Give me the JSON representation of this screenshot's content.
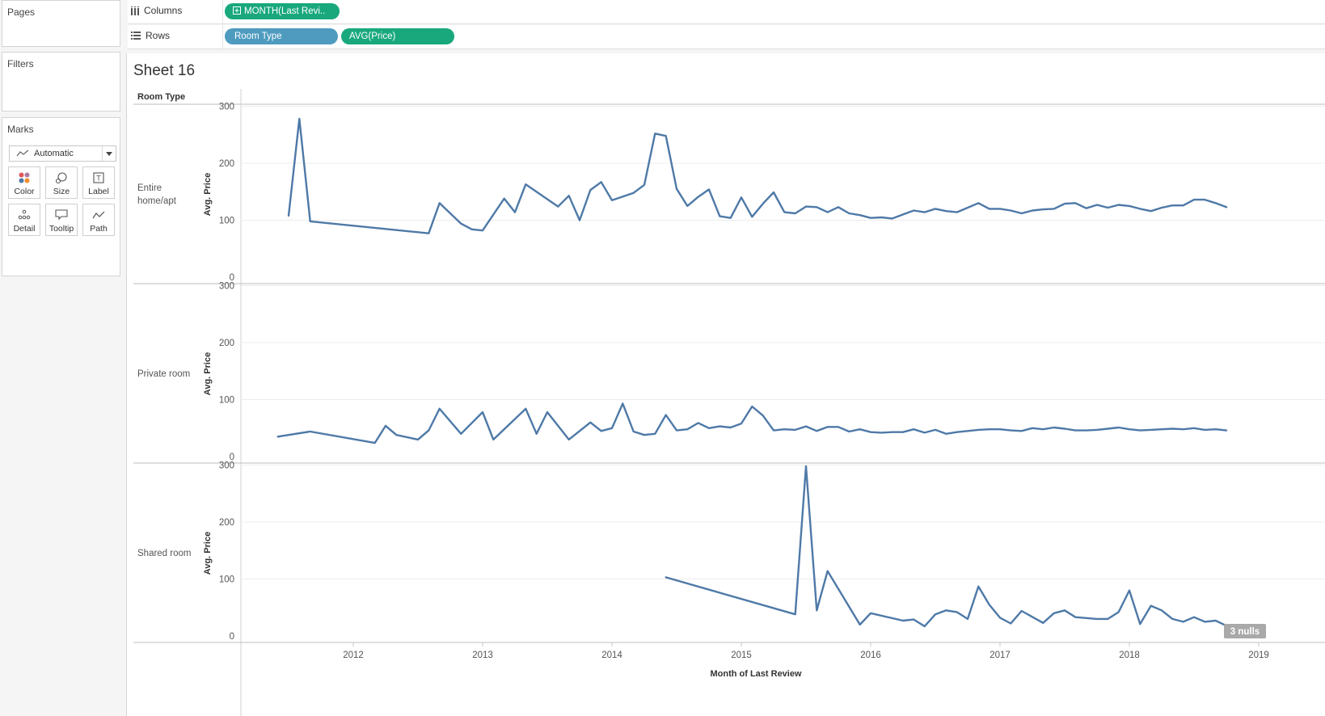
{
  "sidebar": {
    "pages_title": "Pages",
    "filters_title": "Filters",
    "marks_title": "Marks",
    "mark_type": "Automatic",
    "mark_buttons": [
      {
        "label": "Color",
        "icon": "color-dots-icon"
      },
      {
        "label": "Size",
        "icon": "size-circles-icon"
      },
      {
        "label": "Label",
        "icon": "label-text-icon"
      },
      {
        "label": "Detail",
        "icon": "detail-dots-icon"
      },
      {
        "label": "Tooltip",
        "icon": "tooltip-bubble-icon"
      },
      {
        "label": "Path",
        "icon": "path-line-icon"
      }
    ]
  },
  "shelves": {
    "columns_label": "Columns",
    "rows_label": "Rows",
    "columns_pills": [
      "MONTH(Last Revi.."
    ],
    "rows_pills": [
      "Room Type",
      "AVG(Price)"
    ]
  },
  "sheet": {
    "title": "Sheet 16",
    "row_header": "Room Type",
    "nulls_badge": "3 nulls"
  },
  "colors": {
    "line": "#4e79a7",
    "pill_green": "#19a87c",
    "pill_blue": "#4e9bbf"
  },
  "chart_data": {
    "type": "line",
    "x_axis_label": "Month of Last Review",
    "x_ticks": [
      "2012",
      "2013",
      "2014",
      "2015",
      "2016",
      "2017",
      "2018",
      "2019"
    ],
    "y_axis_label": "Avg. Price",
    "y_ticks": [
      "0",
      "100",
      "200",
      "300"
    ],
    "ylim": [
      0,
      300
    ],
    "grid": true,
    "panels": [
      {
        "name": "Entire home/apt",
        "points": [
          [
            "2011-07",
            108
          ],
          [
            "2011-08",
            278
          ],
          [
            "2011-09",
            98
          ],
          [
            "2012-08",
            77
          ],
          [
            "2012-09",
            130
          ],
          [
            "2012-11",
            94
          ],
          [
            "2012-12",
            84
          ],
          [
            "2013-01",
            82
          ],
          [
            "2013-03",
            138
          ],
          [
            "2013-04",
            114
          ],
          [
            "2013-05",
            163
          ],
          [
            "2013-08",
            124
          ],
          [
            "2013-09",
            143
          ],
          [
            "2013-10",
            100
          ],
          [
            "2013-11",
            153
          ],
          [
            "2013-12",
            167
          ],
          [
            "2014-01",
            135
          ],
          [
            "2014-03",
            148
          ],
          [
            "2014-04",
            162
          ],
          [
            "2014-05",
            252
          ],
          [
            "2014-06",
            248
          ],
          [
            "2014-07",
            155
          ],
          [
            "2014-08",
            125
          ],
          [
            "2014-09",
            141
          ],
          [
            "2014-10",
            154
          ],
          [
            "2014-11",
            107
          ],
          [
            "2014-12",
            104
          ],
          [
            "2015-01",
            140
          ],
          [
            "2015-02",
            106
          ],
          [
            "2015-03",
            129
          ],
          [
            "2015-04",
            149
          ],
          [
            "2015-05",
            114
          ],
          [
            "2015-06",
            112
          ],
          [
            "2015-07",
            124
          ],
          [
            "2015-08",
            123
          ],
          [
            "2015-09",
            114
          ],
          [
            "2015-10",
            123
          ],
          [
            "2015-11",
            112
          ],
          [
            "2015-12",
            109
          ],
          [
            "2016-01",
            104
          ],
          [
            "2016-02",
            105
          ],
          [
            "2016-03",
            103
          ],
          [
            "2016-04",
            110
          ],
          [
            "2016-05",
            117
          ],
          [
            "2016-06",
            114
          ],
          [
            "2016-07",
            120
          ],
          [
            "2016-08",
            116
          ],
          [
            "2016-09",
            114
          ],
          [
            "2016-10",
            122
          ],
          [
            "2016-11",
            130
          ],
          [
            "2016-12",
            120
          ],
          [
            "2017-01",
            120
          ],
          [
            "2017-02",
            117
          ],
          [
            "2017-03",
            112
          ],
          [
            "2017-04",
            117
          ],
          [
            "2017-05",
            119
          ],
          [
            "2017-06",
            120
          ],
          [
            "2017-07",
            129
          ],
          [
            "2017-08",
            130
          ],
          [
            "2017-09",
            121
          ],
          [
            "2017-10",
            127
          ],
          [
            "2017-11",
            122
          ],
          [
            "2017-12",
            127
          ],
          [
            "2018-01",
            125
          ],
          [
            "2018-02",
            120
          ],
          [
            "2018-03",
            116
          ],
          [
            "2018-04",
            122
          ],
          [
            "2018-05",
            126
          ],
          [
            "2018-06",
            126
          ],
          [
            "2018-07",
            136
          ],
          [
            "2018-08",
            136
          ],
          [
            "2018-09",
            130
          ],
          [
            "2018-10",
            123
          ]
        ]
      },
      {
        "name": "Private room",
        "points": [
          [
            "2011-06",
            35
          ],
          [
            "2011-09",
            44
          ],
          [
            "2012-03",
            24
          ],
          [
            "2012-04",
            54
          ],
          [
            "2012-05",
            38
          ],
          [
            "2012-07",
            30
          ],
          [
            "2012-08",
            46
          ],
          [
            "2012-09",
            84
          ],
          [
            "2012-11",
            40
          ],
          [
            "2013-01",
            78
          ],
          [
            "2013-02",
            30
          ],
          [
            "2013-05",
            84
          ],
          [
            "2013-06",
            40
          ],
          [
            "2013-07",
            78
          ],
          [
            "2013-09",
            30
          ],
          [
            "2013-11",
            60
          ],
          [
            "2013-12",
            45
          ],
          [
            "2014-01",
            50
          ],
          [
            "2014-02",
            93
          ],
          [
            "2014-03",
            44
          ],
          [
            "2014-04",
            38
          ],
          [
            "2014-05",
            40
          ],
          [
            "2014-06",
            73
          ],
          [
            "2014-07",
            46
          ],
          [
            "2014-08",
            48
          ],
          [
            "2014-09",
            59
          ],
          [
            "2014-10",
            50
          ],
          [
            "2014-11",
            53
          ],
          [
            "2014-12",
            51
          ],
          [
            "2015-01",
            58
          ],
          [
            "2015-02",
            88
          ],
          [
            "2015-03",
            72
          ],
          [
            "2015-04",
            46
          ],
          [
            "2015-05",
            48
          ],
          [
            "2015-06",
            47
          ],
          [
            "2015-07",
            53
          ],
          [
            "2015-08",
            45
          ],
          [
            "2015-09",
            52
          ],
          [
            "2015-10",
            52
          ],
          [
            "2015-11",
            44
          ],
          [
            "2015-12",
            48
          ],
          [
            "2016-01",
            43
          ],
          [
            "2016-02",
            42
          ],
          [
            "2016-03",
            43
          ],
          [
            "2016-04",
            43
          ],
          [
            "2016-05",
            48
          ],
          [
            "2016-06",
            42
          ],
          [
            "2016-07",
            47
          ],
          [
            "2016-08",
            40
          ],
          [
            "2016-09",
            43
          ],
          [
            "2016-11",
            47
          ],
          [
            "2016-12",
            48
          ],
          [
            "2017-01",
            48
          ],
          [
            "2017-02",
            46
          ],
          [
            "2017-03",
            45
          ],
          [
            "2017-04",
            50
          ],
          [
            "2017-05",
            48
          ],
          [
            "2017-06",
            51
          ],
          [
            "2017-07",
            49
          ],
          [
            "2017-08",
            46
          ],
          [
            "2017-09",
            46
          ],
          [
            "2017-10",
            47
          ],
          [
            "2017-11",
            49
          ],
          [
            "2017-12",
            51
          ],
          [
            "2018-01",
            48
          ],
          [
            "2018-02",
            46
          ],
          [
            "2018-03",
            47
          ],
          [
            "2018-04",
            48
          ],
          [
            "2018-05",
            49
          ],
          [
            "2018-06",
            48
          ],
          [
            "2018-07",
            50
          ],
          [
            "2018-08",
            47
          ],
          [
            "2018-09",
            48
          ],
          [
            "2018-10",
            46
          ]
        ]
      },
      {
        "name": "Shared room",
        "points": [
          [
            "2014-06",
            103
          ],
          [
            "2015-06",
            38
          ],
          [
            "2015-07",
            298
          ],
          [
            "2015-08",
            45
          ],
          [
            "2015-09",
            114
          ],
          [
            "2015-12",
            20
          ],
          [
            "2016-01",
            40
          ],
          [
            "2016-04",
            27
          ],
          [
            "2016-05",
            29
          ],
          [
            "2016-06",
            17
          ],
          [
            "2016-07",
            38
          ],
          [
            "2016-08",
            45
          ],
          [
            "2016-09",
            42
          ],
          [
            "2016-10",
            30
          ],
          [
            "2016-11",
            87
          ],
          [
            "2016-12",
            55
          ],
          [
            "2017-01",
            32
          ],
          [
            "2017-02",
            22
          ],
          [
            "2017-03",
            44
          ],
          [
            "2017-05",
            23
          ],
          [
            "2017-06",
            40
          ],
          [
            "2017-07",
            45
          ],
          [
            "2017-08",
            33
          ],
          [
            "2017-10",
            30
          ],
          [
            "2017-11",
            30
          ],
          [
            "2017-12",
            42
          ],
          [
            "2018-01",
            80
          ],
          [
            "2018-02",
            21
          ],
          [
            "2018-03",
            53
          ],
          [
            "2018-04",
            45
          ],
          [
            "2018-05",
            30
          ],
          [
            "2018-06",
            25
          ],
          [
            "2018-07",
            33
          ],
          [
            "2018-08",
            25
          ],
          [
            "2018-09",
            27
          ],
          [
            "2018-10",
            18
          ]
        ]
      }
    ]
  }
}
